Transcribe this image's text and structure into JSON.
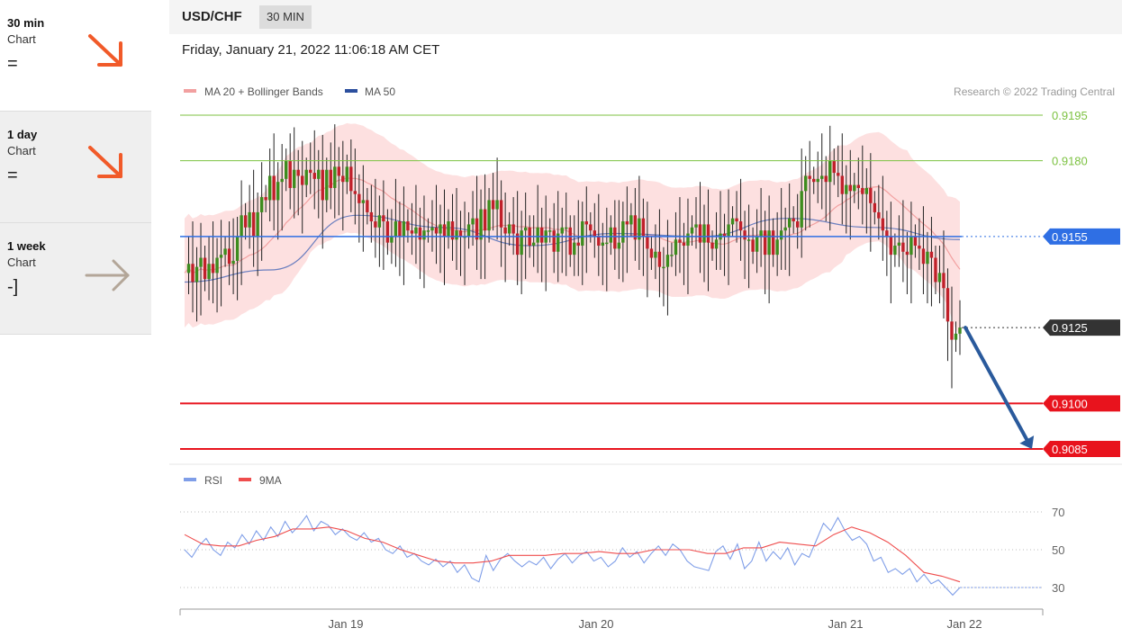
{
  "sidebar": {
    "items": [
      {
        "name": "30 min",
        "sub": "Chart",
        "signal": "=",
        "arrow_icon": "arrow-down-right-icon",
        "arrow_color": "#f15a29"
      },
      {
        "name": "1 day",
        "sub": "Chart",
        "signal": "=",
        "arrow_icon": "arrow-down-right-icon",
        "arrow_color": "#f15a29"
      },
      {
        "name": "1 week",
        "sub": "Chart",
        "signal": "-]",
        "arrow_icon": "arrow-right-icon",
        "arrow_color": "#b3a698"
      }
    ]
  },
  "header": {
    "pair": "USD/CHF",
    "period": "30 MIN"
  },
  "datetime": "Friday, January 21, 2022 11:06:18 AM CET",
  "legend": {
    "ma20": "MA 20 + Bollinger Bands",
    "ma50": "MA 50",
    "credit": "Research © 2022 Trading Central"
  },
  "rsi_legend": {
    "rsi": "RSI",
    "ma9": "9MA"
  },
  "colors": {
    "green": "#7dc242",
    "blue": "#2f6fe4",
    "red": "#e8131d",
    "dark": "#333333",
    "bull": "#3d8c1e",
    "bear": "#c0202a",
    "band": "#fde0e0",
    "ma20": "#f2a0a0",
    "ma50": "#6b7fbf",
    "rsi": "#7f9ee8",
    "rsi_ma": "#ef4d4d",
    "forecast": "#2a5a9c"
  },
  "chart_data": [
    {
      "type": "candlestick",
      "title": "USD/CHF",
      "x_tick_labels": [
        "Jan 19",
        "Jan 20",
        "Jan 21",
        "Jan 22"
      ],
      "ylim": [
        0.9078,
        0.92
      ],
      "levels": [
        {
          "value": 0.9195,
          "label": "0.9195",
          "style": "green-line"
        },
        {
          "value": 0.918,
          "label": "0.9180",
          "style": "green-line"
        },
        {
          "value": 0.9155,
          "label": "0.9155",
          "style": "blue-pivot"
        },
        {
          "value": 0.9125,
          "label": "0.9125",
          "style": "last-price"
        },
        {
          "value": 0.91,
          "label": "0.9100",
          "style": "red-support"
        },
        {
          "value": 0.9085,
          "label": "0.9085",
          "style": "red-support"
        }
      ],
      "forecast_arrow": {
        "from": 0.9125,
        "to": 0.9085
      },
      "series": [
        {
          "name": "MA 20 + Bollinger Bands",
          "close": [
            0.9143,
            0.9146,
            0.914,
            0.9145,
            0.9148,
            0.9141,
            0.9146,
            0.9143,
            0.9148,
            0.9149,
            0.9151,
            0.9146,
            0.9147,
            0.9155,
            0.9162,
            0.9158,
            0.9163,
            0.9155,
            0.9163,
            0.9168,
            0.9167,
            0.9175,
            0.9167,
            0.9173,
            0.9174,
            0.918,
            0.9171,
            0.9177,
            0.9175,
            0.9172,
            0.9177,
            0.9176,
            0.9174,
            0.9177,
            0.9167,
            0.9177,
            0.9171,
            0.9178,
            0.9175,
            0.9173,
            0.9178,
            0.917,
            0.9169,
            0.9166,
            0.9167,
            0.9163,
            0.916,
            0.9158,
            0.9162,
            0.916,
            0.9153,
            0.9155,
            0.916,
            0.9155,
            0.916,
            0.9157,
            0.9156,
            0.9158,
            0.9154,
            0.9157,
            0.9157,
            0.9158,
            0.9156,
            0.9159,
            0.9155,
            0.916,
            0.9154,
            0.9157,
            0.9155,
            0.9155,
            0.9159,
            0.9161,
            0.9154,
            0.9164,
            0.9157,
            0.9167,
            0.9164,
            0.9167,
            0.9158,
            0.9156,
            0.9159,
            0.9156,
            0.9149,
            0.9157,
            0.9158,
            0.9152,
            0.9153,
            0.9158,
            0.9153,
            0.9157,
            0.9157,
            0.915,
            0.9156,
            0.9158,
            0.9158,
            0.9149,
            0.9153,
            0.9152,
            0.916,
            0.9159,
            0.9157,
            0.9155,
            0.9152,
            0.9153,
            0.9153,
            0.9158,
            0.9151,
            0.9153,
            0.916,
            0.9159,
            0.9162,
            0.9154,
            0.9161,
            0.9155,
            0.9151,
            0.9148,
            0.915,
            0.9145,
            0.9145,
            0.9149,
            0.9149,
            0.9154,
            0.9153,
            0.9152,
            0.9156,
            0.9158,
            0.9159,
            0.9153,
            0.9159,
            0.9153,
            0.9151,
            0.9154,
            0.9156,
            0.9155,
            0.9159,
            0.9161,
            0.916,
            0.9157,
            0.9154,
            0.9154,
            0.915,
            0.9155,
            0.9157,
            0.9149,
            0.9157,
            0.9149,
            0.9154,
            0.9157,
            0.9158,
            0.9161,
            0.916,
            0.9158,
            0.917,
            0.9175,
            0.9174,
            0.9173,
            0.9174,
            0.9175,
            0.9173,
            0.918,
            0.9176,
            0.9175,
            0.9169,
            0.9172,
            0.917,
            0.9172,
            0.9171,
            0.9169,
            0.9171,
            0.9166,
            0.9163,
            0.9161,
            0.9157,
            0.9155,
            0.9149,
            0.9152,
            0.9153,
            0.915,
            0.9149,
            0.9155,
            0.9152,
            0.9151,
            0.9146,
            0.915,
            0.9148,
            0.914,
            0.9143,
            0.9138,
            0.9127,
            0.9121,
            0.9123,
            0.9125
          ]
        },
        {
          "name": "MA 50",
          "values": [
            0.914,
            0.9144,
            0.9162,
            0.9158,
            0.9152,
            0.9156,
            0.9155,
            0.9161,
            0.9158,
            0.9154
          ]
        },
        {
          "name": "RSI",
          "values": [
            50,
            46,
            52,
            56,
            50,
            47,
            54,
            51,
            58,
            53,
            60,
            55,
            62,
            57,
            65,
            59,
            63,
            68,
            60,
            65,
            63,
            58,
            61,
            57,
            55,
            59,
            54,
            56,
            50,
            48,
            52,
            46,
            48,
            44,
            42,
            45,
            41,
            44,
            38,
            42,
            35,
            33,
            47,
            39,
            45,
            48,
            44,
            41,
            44,
            42,
            46,
            40,
            45,
            48,
            43,
            47,
            49,
            44,
            46,
            41,
            44,
            51,
            46,
            49,
            43,
            48,
            52,
            47,
            53,
            50,
            44,
            41,
            40,
            39,
            49,
            52,
            45,
            53,
            40,
            44,
            54,
            44,
            49,
            45,
            51,
            42,
            48,
            46,
            55,
            64,
            60,
            67,
            60,
            55,
            57,
            53,
            44,
            46,
            38,
            40,
            37,
            40,
            33,
            37,
            32,
            34,
            30,
            26,
            30
          ]
        },
        {
          "name": "9MA",
          "values": [
            58,
            53,
            52,
            52,
            55,
            57,
            61,
            61,
            62,
            60,
            56,
            54,
            50,
            47,
            44,
            43,
            43,
            44,
            47,
            47,
            47,
            48,
            48,
            49,
            48,
            48,
            50,
            50,
            50,
            48,
            48,
            51,
            51,
            54,
            53,
            52,
            58,
            62,
            59,
            54,
            47,
            38,
            36,
            33
          ]
        }
      ]
    },
    {
      "type": "line",
      "title": "RSI",
      "x_tick_labels": [
        "Jan 19",
        "Jan 20",
        "Jan 21",
        "Jan 22"
      ],
      "ylim": [
        21,
        76
      ],
      "y_ticks": [
        30,
        50,
        70
      ],
      "last_value": 30
    }
  ]
}
